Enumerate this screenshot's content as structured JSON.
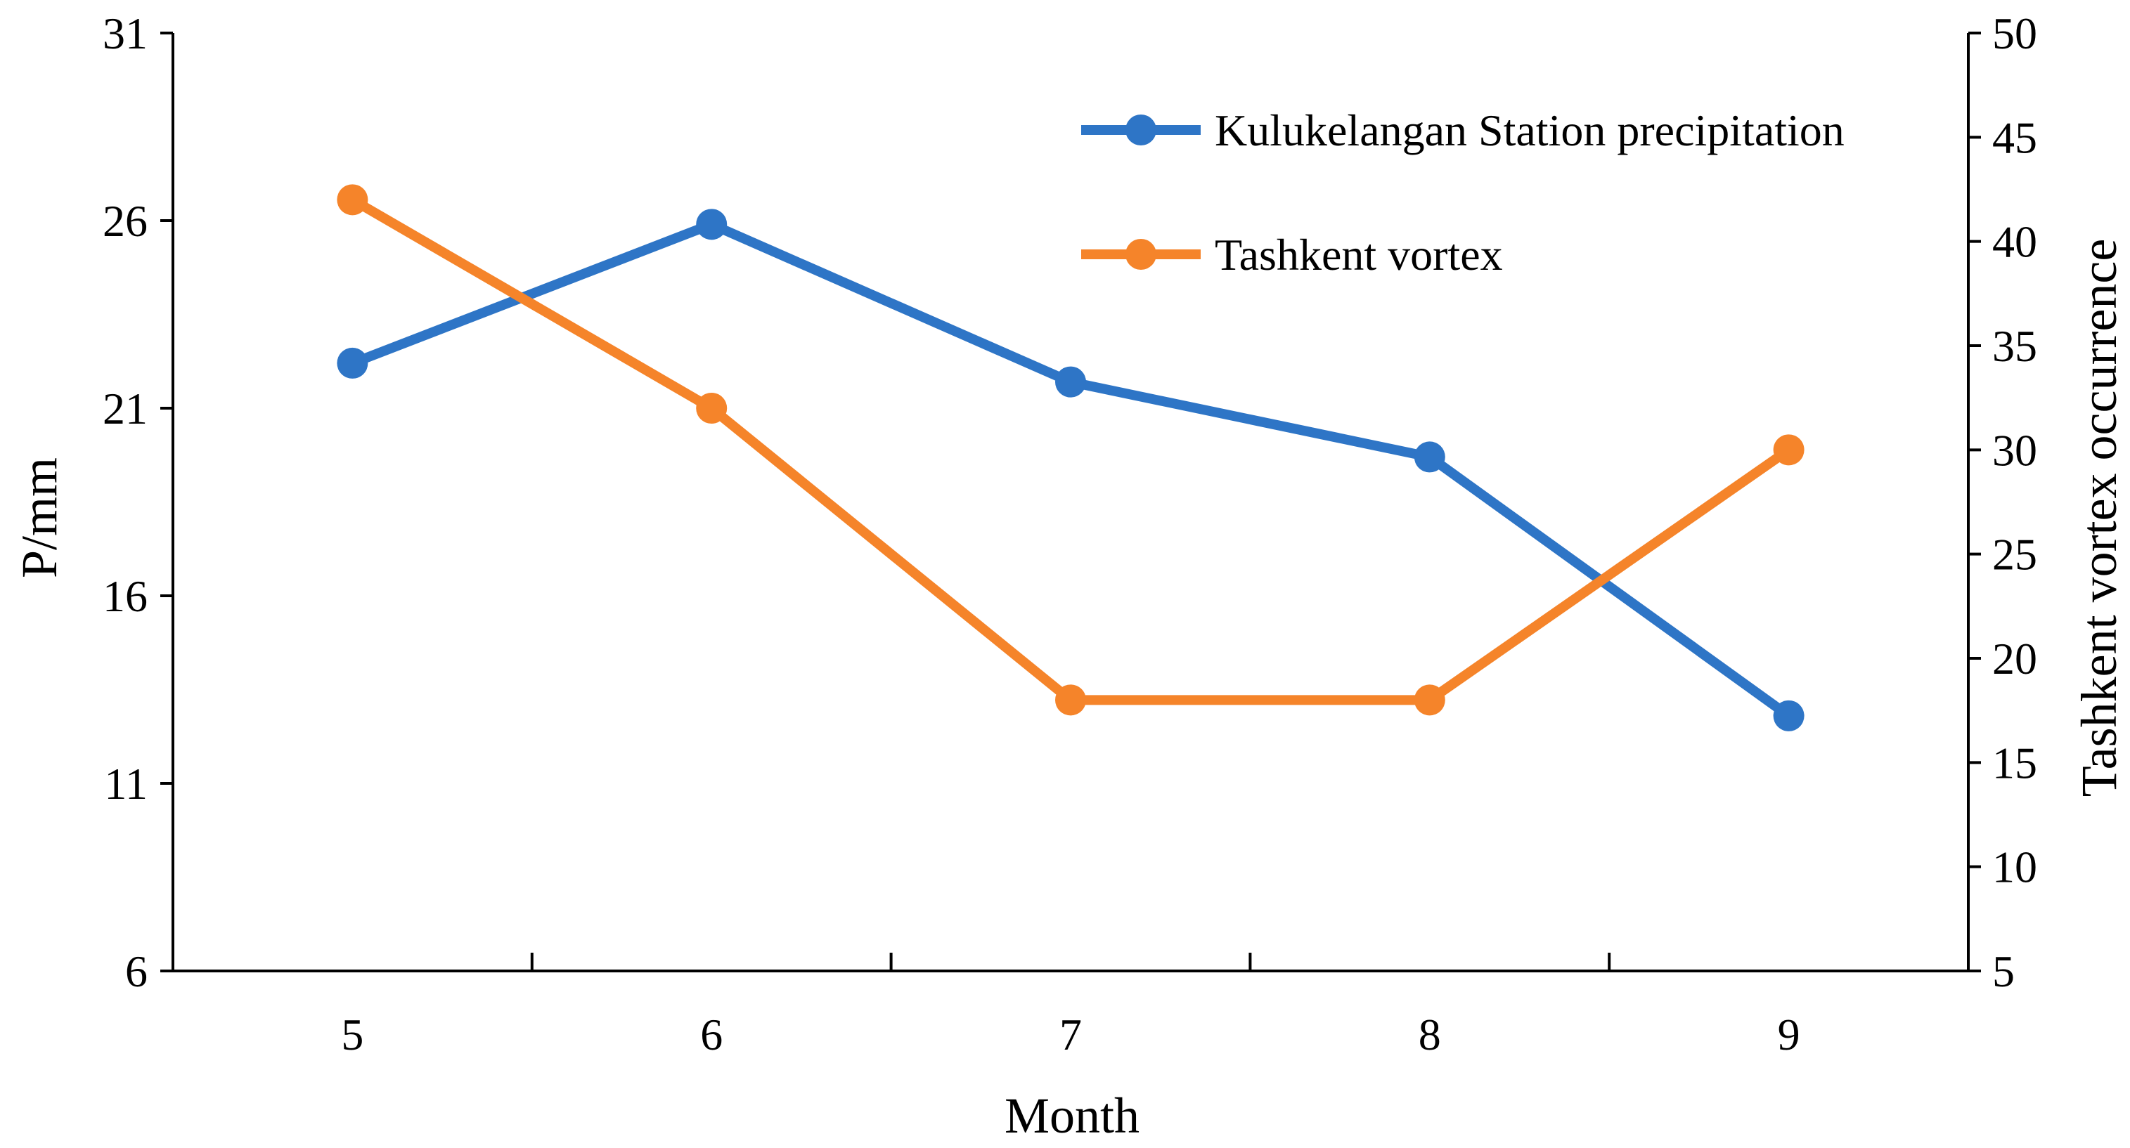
{
  "chart_data": {
    "type": "line",
    "xlabel": "Month",
    "ylabel_left": "P/mm",
    "ylabel_right": "Tashkent vortex occurrence",
    "categories": [
      "5",
      "6",
      "7",
      "8",
      "9"
    ],
    "y_left": {
      "min": 6,
      "max": 31,
      "ticks": [
        "6",
        "11",
        "16",
        "21",
        "26",
        "31"
      ]
    },
    "y_right": {
      "min": 5,
      "max": 50,
      "ticks": [
        "5",
        "10",
        "15",
        "20",
        "25",
        "30",
        "35",
        "40",
        "45",
        "50"
      ]
    },
    "legend_position": "top-right",
    "series": [
      {
        "name": "Kulukelangan Station precipitation",
        "axis": "left",
        "color": "#2E75C6",
        "values": [
          22.2,
          25.9,
          21.7,
          19.7,
          12.8
        ]
      },
      {
        "name": "Tashkent vortex",
        "axis": "right",
        "color": "#F5842A",
        "values": [
          42,
          32,
          18,
          18,
          30
        ]
      }
    ]
  }
}
